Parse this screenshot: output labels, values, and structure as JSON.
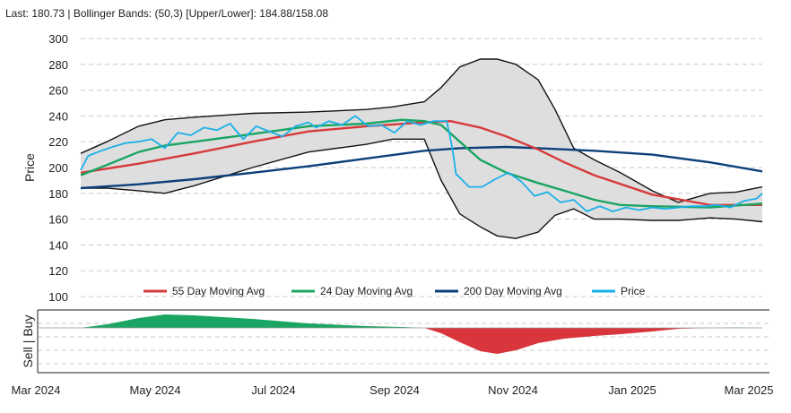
{
  "header": {
    "text": "Last: 180.73 | Bollinger Bands: (50,3) [Upper/Lower]: 184.88/158.08"
  },
  "chart_data": {
    "type": "line",
    "ylabel": "Price",
    "ylim": [
      100,
      300
    ],
    "yticks": [
      100,
      120,
      140,
      160,
      180,
      200,
      220,
      240,
      260,
      280,
      300
    ],
    "xlim": [
      "2024-03-01",
      "2025-03-01"
    ],
    "xticks": [
      "Mar 2024",
      "May 2024",
      "Jul 2024",
      "Sep 2024",
      "Nov 2024",
      "Jan 2025",
      "Mar 2025"
    ],
    "legend_position": "bottom",
    "grid": true,
    "series": [
      {
        "name": "55 Day Moving Avg",
        "color": "#d63a3a",
        "x": [
          "2024-03-01",
          "2024-04-01",
          "2024-05-01",
          "2024-06-01",
          "2024-07-01",
          "2024-08-01",
          "2024-09-01",
          "2024-09-15",
          "2024-10-01",
          "2024-10-15",
          "2024-11-01",
          "2024-11-15",
          "2024-12-01",
          "2025-01-01",
          "2025-02-01",
          "2025-03-01"
        ],
        "values": [
          196,
          203,
          211,
          220,
          228,
          232,
          235,
          236,
          231,
          224,
          214,
          204,
          194,
          179,
          171,
          171
        ]
      },
      {
        "name": "24 Day Moving Avg",
        "color": "#1aa563",
        "x": [
          "2024-03-01",
          "2024-03-15",
          "2024-04-01",
          "2024-04-15",
          "2024-05-01",
          "2024-06-01",
          "2024-07-01",
          "2024-08-01",
          "2024-08-20",
          "2024-09-01",
          "2024-09-10",
          "2024-09-20",
          "2024-10-01",
          "2024-10-15",
          "2024-11-01",
          "2024-11-15",
          "2024-12-01",
          "2024-12-15",
          "2025-01-01",
          "2025-02-01",
          "2025-03-01"
        ],
        "values": [
          194,
          202,
          212,
          217,
          220,
          226,
          232,
          234,
          237,
          236,
          233,
          220,
          206,
          196,
          188,
          182,
          175,
          171,
          170,
          169,
          172
        ]
      },
      {
        "name": "200 Day Moving Avg",
        "color": "#0d3f7a",
        "x": [
          "2024-03-01",
          "2024-04-01",
          "2024-05-01",
          "2024-06-01",
          "2024-07-01",
          "2024-08-01",
          "2024-09-01",
          "2024-09-20",
          "2024-10-15",
          "2024-11-01",
          "2024-12-01",
          "2025-01-01",
          "2025-02-01",
          "2025-03-01"
        ],
        "values": [
          184,
          187,
          191,
          196,
          201,
          207,
          213,
          215,
          216,
          215,
          213,
          210,
          204,
          197
        ]
      },
      {
        "name": "Price",
        "color": "#1ab0e8",
        "x": [
          "2024-03-01",
          "2024-03-05",
          "2024-03-12",
          "2024-03-18",
          "2024-03-25",
          "2024-04-01",
          "2024-04-08",
          "2024-04-15",
          "2024-04-22",
          "2024-04-29",
          "2024-05-06",
          "2024-05-13",
          "2024-05-20",
          "2024-05-27",
          "2024-06-03",
          "2024-06-10",
          "2024-06-17",
          "2024-06-24",
          "2024-07-01",
          "2024-07-05",
          "2024-07-12",
          "2024-07-19",
          "2024-07-26",
          "2024-08-02",
          "2024-08-09",
          "2024-08-16",
          "2024-08-23",
          "2024-08-30",
          "2024-09-06",
          "2024-09-13",
          "2024-09-16",
          "2024-09-18",
          "2024-09-25",
          "2024-10-02",
          "2024-10-09",
          "2024-10-16",
          "2024-10-23",
          "2024-10-30",
          "2024-11-06",
          "2024-11-13",
          "2024-11-20",
          "2024-11-27",
          "2024-12-04",
          "2024-12-11",
          "2024-12-18",
          "2024-12-25",
          "2025-01-01",
          "2025-01-08",
          "2025-01-15",
          "2025-01-22",
          "2025-01-29",
          "2025-02-05",
          "2025-02-12",
          "2025-02-19",
          "2025-02-26",
          "2025-03-01"
        ],
        "values": [
          198,
          209,
          213,
          216,
          219,
          220,
          222,
          215,
          227,
          225,
          231,
          229,
          234,
          222,
          232,
          228,
          224,
          232,
          235,
          231,
          236,
          233,
          240,
          232,
          233,
          227,
          236,
          233,
          236,
          236,
          215,
          195,
          185,
          185,
          191,
          196,
          189,
          178,
          181,
          173,
          175,
          166,
          170,
          166,
          169,
          167,
          169,
          168,
          169,
          170,
          170,
          171,
          169,
          174,
          176,
          180
        ]
      }
    ],
    "bollinger": {
      "x": [
        "2024-03-01",
        "2024-03-15",
        "2024-04-01",
        "2024-04-15",
        "2024-05-01",
        "2024-06-01",
        "2024-07-01",
        "2024-08-01",
        "2024-08-15",
        "2024-09-01",
        "2024-09-10",
        "2024-09-20",
        "2024-10-01",
        "2024-10-10",
        "2024-10-20",
        "2024-11-01",
        "2024-11-10",
        "2024-11-20",
        "2024-12-01",
        "2024-12-15",
        "2025-01-01",
        "2025-01-15",
        "2025-02-01",
        "2025-02-15",
        "2025-03-01"
      ],
      "upper": [
        211,
        220,
        232,
        237,
        239,
        242,
        243,
        245,
        247,
        251,
        262,
        278,
        284,
        284,
        280,
        268,
        245,
        215,
        206,
        196,
        182,
        173,
        180,
        181,
        185
      ],
      "lower": [
        184,
        184,
        182,
        180,
        186,
        200,
        212,
        218,
        222,
        222,
        190,
        164,
        154,
        147,
        145,
        150,
        163,
        168,
        160,
        160,
        159,
        159,
        161,
        160,
        158
      ]
    },
    "signal": {
      "label": "Sell | Buy",
      "x": [
        "2024-03-01",
        "2024-03-15",
        "2024-04-01",
        "2024-04-15",
        "2024-05-01",
        "2024-06-01",
        "2024-07-01",
        "2024-08-01",
        "2024-08-20",
        "2024-09-01",
        "2024-09-10",
        "2024-09-20",
        "2024-10-01",
        "2024-10-10",
        "2024-10-20",
        "2024-11-01",
        "2024-11-15",
        "2024-12-01",
        "2024-12-15",
        "2025-01-01",
        "2025-01-15",
        "2025-02-01",
        "2025-02-15",
        "2025-03-01"
      ],
      "values": [
        0,
        4,
        11,
        15,
        14,
        10,
        5,
        2,
        1,
        0,
        -6,
        -16,
        -26,
        -29,
        -25,
        -17,
        -12,
        -9,
        -7,
        -4,
        -1,
        0,
        0.5,
        0
      ],
      "ylim": [
        -30,
        16
      ]
    }
  }
}
